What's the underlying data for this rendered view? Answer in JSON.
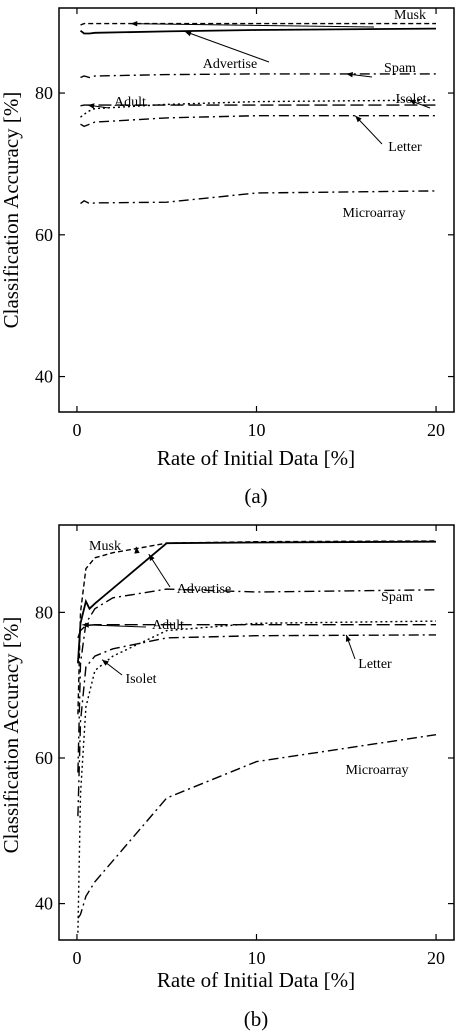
{
  "figure": {
    "caption_a": "(a)",
    "caption_b": "(b)"
  },
  "chart_data": [
    {
      "type": "line",
      "panel": "(a)",
      "xlabel": "Rate of Initial Data [%]",
      "ylabel": "Classification Accuracy [%]",
      "xlim": [
        -1,
        21
      ],
      "ylim": [
        35,
        92
      ],
      "xticks": [
        0,
        10,
        20
      ],
      "yticks": [
        40,
        60,
        80
      ],
      "grid": false,
      "legend": "none (series labeled inline)",
      "series": [
        {
          "name": "Musk",
          "style": "short-dash",
          "x": [
            0.2,
            0.4,
            1,
            5,
            10,
            20
          ],
          "y": [
            89.6,
            89.8,
            89.8,
            89.8,
            89.8,
            89.8
          ]
        },
        {
          "name": "Advertise",
          "style": "solid",
          "x": [
            0.2,
            0.4,
            0.7,
            1,
            5,
            10,
            20
          ],
          "y": [
            88.8,
            88.4,
            88.4,
            88.5,
            88.7,
            88.9,
            89.1
          ]
        },
        {
          "name": "Spam",
          "style": "dash-dot",
          "x": [
            0.2,
            0.4,
            0.7,
            1,
            5,
            10,
            20
          ],
          "y": [
            82.2,
            82.4,
            82.2,
            82.4,
            82.6,
            82.7,
            82.7
          ]
        },
        {
          "name": "Adult",
          "style": "long-dash",
          "x": [
            0.2,
            0.4,
            1,
            5,
            10,
            20
          ],
          "y": [
            78.2,
            78.3,
            78.3,
            78.3,
            78.3,
            78.3
          ]
        },
        {
          "name": "Isolet",
          "style": "dotted",
          "x": [
            0.2,
            0.4,
            0.7,
            1,
            5,
            10,
            20
          ],
          "y": [
            76.6,
            77.0,
            77.5,
            77.8,
            78.4,
            78.8,
            79.0
          ]
        },
        {
          "name": "Letter",
          "style": "dash-dot",
          "x": [
            0.2,
            0.4,
            0.7,
            1,
            5,
            10,
            20
          ],
          "y": [
            75.6,
            75.3,
            75.6,
            75.9,
            76.5,
            76.8,
            76.8
          ]
        },
        {
          "name": "Microarray",
          "style": "dash-dot",
          "x": [
            0.2,
            0.4,
            0.7,
            1,
            5,
            10,
            20
          ],
          "y": [
            64.4,
            64.8,
            64.4,
            64.5,
            64.6,
            65.9,
            66.2
          ]
        }
      ]
    },
    {
      "type": "line",
      "panel": "(b)",
      "xlabel": "Rate of Initial Data [%]",
      "ylabel": "Classification Accuracy [%]",
      "xlim": [
        -1,
        21
      ],
      "ylim": [
        35,
        92
      ],
      "xticks": [
        0,
        10,
        20
      ],
      "yticks": [
        40,
        60,
        80
      ],
      "grid": false,
      "legend": "none (series labeled inline)",
      "series": [
        {
          "name": "Musk",
          "style": "short-dash",
          "x": [
            0.05,
            0.2,
            0.5,
            1,
            2,
            5,
            10,
            20
          ],
          "y": [
            66,
            80,
            86,
            87.5,
            88.2,
            89.5,
            89.7,
            89.8
          ]
        },
        {
          "name": "Advertise",
          "style": "solid",
          "x": [
            0.05,
            0.2,
            0.5,
            0.7,
            1,
            5,
            10,
            20
          ],
          "y": [
            73,
            78.5,
            81.5,
            80.5,
            81.2,
            89.5,
            89.6,
            89.7
          ]
        },
        {
          "name": "Spam",
          "style": "dash-dot",
          "x": [
            0.05,
            0.2,
            0.5,
            1,
            2,
            5,
            10,
            20
          ],
          "y": [
            58,
            73,
            78.5,
            80.5,
            82,
            83.2,
            82.8,
            83.1
          ]
        },
        {
          "name": "Adult",
          "style": "long-dash",
          "x": [
            0.05,
            0.2,
            0.5,
            1,
            5,
            10,
            20
          ],
          "y": [
            76.5,
            77.5,
            78.2,
            78.3,
            78.3,
            78.3,
            78.3
          ]
        },
        {
          "name": "Isolet",
          "style": "dotted",
          "x": [
            0.05,
            0.2,
            0.5,
            1,
            2,
            5,
            10,
            20
          ],
          "y": [
            36,
            55,
            67,
            72,
            74,
            77.5,
            78.5,
            78.8
          ]
        },
        {
          "name": "Letter",
          "style": "dash-dot",
          "x": [
            0.05,
            0.2,
            0.5,
            1,
            2,
            5,
            10,
            20
          ],
          "y": [
            52,
            65,
            72.5,
            74,
            75,
            76.5,
            76.8,
            76.9
          ]
        },
        {
          "name": "Microarray",
          "style": "dash-dot",
          "x": [
            0.05,
            0.2,
            0.5,
            1,
            5,
            10,
            20
          ],
          "y": [
            38,
            38.5,
            41,
            43,
            54.5,
            59.5,
            63.2
          ]
        }
      ]
    }
  ]
}
